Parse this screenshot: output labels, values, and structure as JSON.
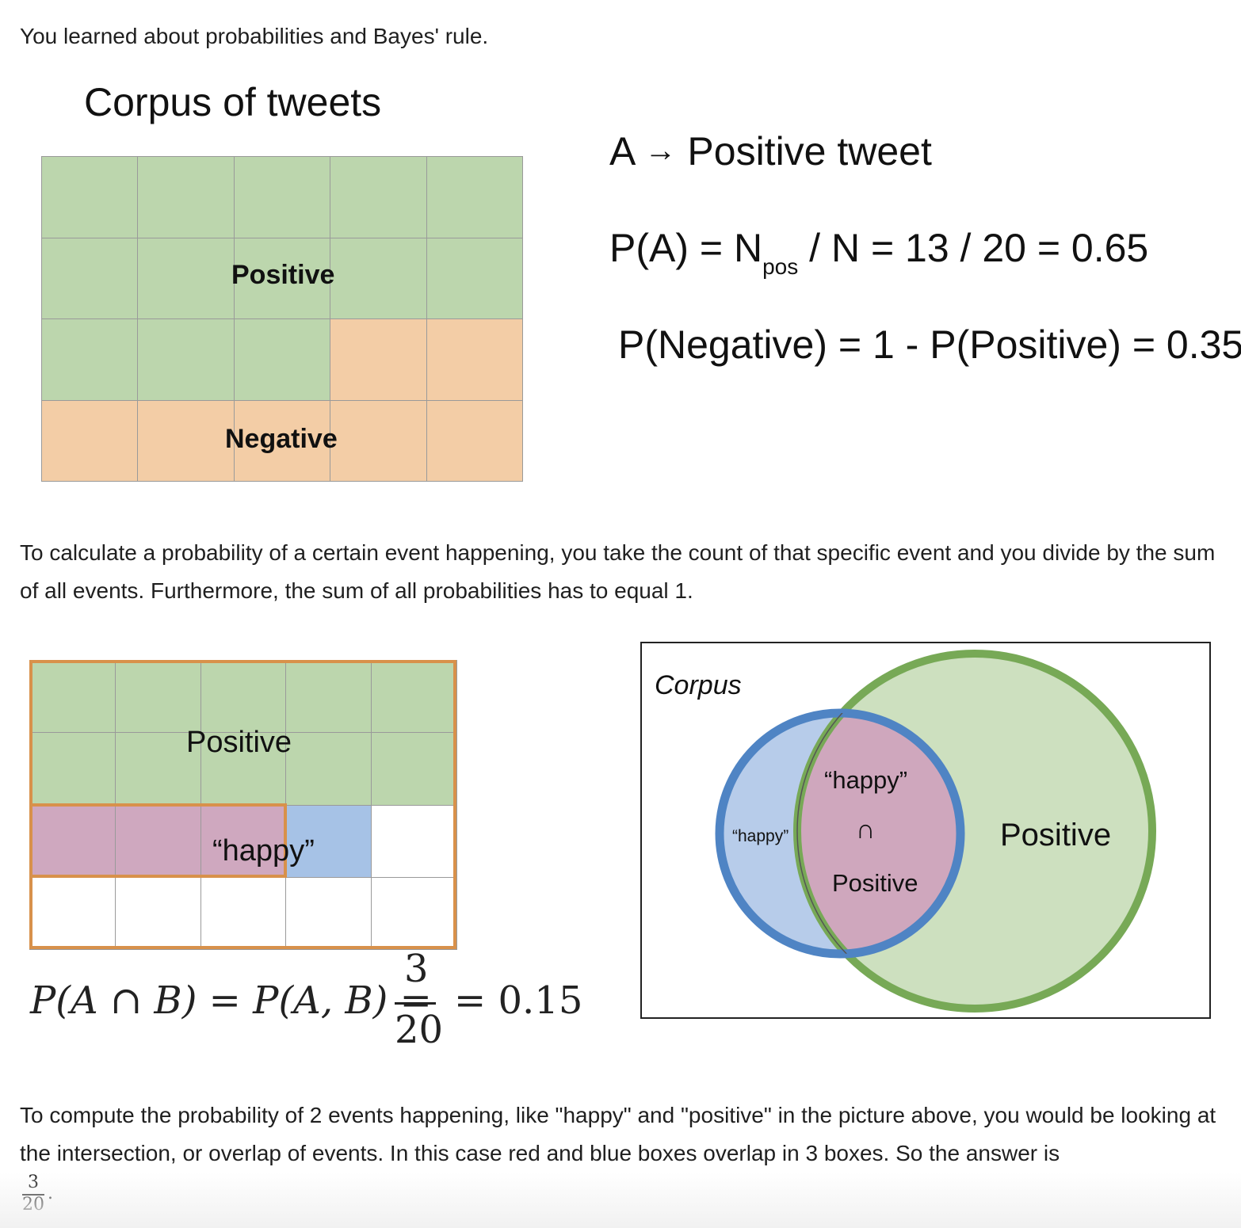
{
  "intro_text": "You learned about probabilities and Bayes' rule.",
  "figure1": {
    "title": "Corpus of tweets",
    "positive_label": "Positive",
    "negative_label": "Negative",
    "cells": [
      "pos",
      "pos",
      "pos",
      "pos",
      "pos",
      "pos",
      "pos",
      "pos",
      "pos",
      "pos",
      "pos",
      "pos",
      "pos",
      "neg",
      "neg",
      "neg",
      "neg",
      "neg",
      "neg",
      "neg"
    ],
    "colors": {
      "pos": "#bcd6ad",
      "neg": "#f3cda6"
    },
    "eq_a_def_left": "A",
    "eq_a_def_arrow": "→",
    "eq_a_def_right": "Positive tweet",
    "eq_pa_lhs": "P(A) = N",
    "eq_pa_sub": "pos",
    "eq_pa_rhs": "/ N = 13 / 20 = 0.65",
    "eq_neg": "P(Negative) = 1 - P(Positive) = 0.35"
  },
  "para1": "To calculate a probability of a certain event happening, you take the count of that specific event and you divide by the sum of all events. Furthermore, the sum of all probabilities has to equal 1.",
  "figure2": {
    "positive_label": "Positive",
    "happy_label": "“happy”",
    "cells": [
      "pos",
      "pos",
      "pos",
      "pos",
      "pos",
      "pos",
      "pos",
      "pos",
      "pos",
      "pos",
      "both",
      "both",
      "both",
      "happy",
      "none",
      "none",
      "none",
      "none",
      "none",
      "none"
    ],
    "colors": {
      "pos": "#bcd6ad",
      "both": "#cfa8bf",
      "happy": "#a6c2e6",
      "none": "#ffffff",
      "outline": "#d8914b"
    },
    "formula_lhs": "P(A ∩ B) = P(A, B) =",
    "formula_num": "3",
    "formula_den": "20",
    "formula_rhs": "= 0.15"
  },
  "venn": {
    "corpus_label": "Corpus",
    "positive_label": "Positive",
    "happy_label": "“happy”",
    "intersection_top": "“happy”",
    "intersection_symbol": "∩",
    "intersection_bottom": "Positive",
    "colors": {
      "positive_fill": "#cde0bf",
      "positive_stroke": "#77a956",
      "happy_fill": "#b7ccea",
      "happy_stroke": "#4f84c4",
      "intersection_fill": "#cfa7bd"
    }
  },
  "para2": "To compute the probability of 2 events happening, like \"happy\" and \"positive\" in the picture above, you would be looking at the intersection, or overlap of events. In this case red and blue boxes overlap in 3 boxes. So the answer is",
  "answer_num": "3",
  "answer_den": "20",
  "answer_period": "."
}
